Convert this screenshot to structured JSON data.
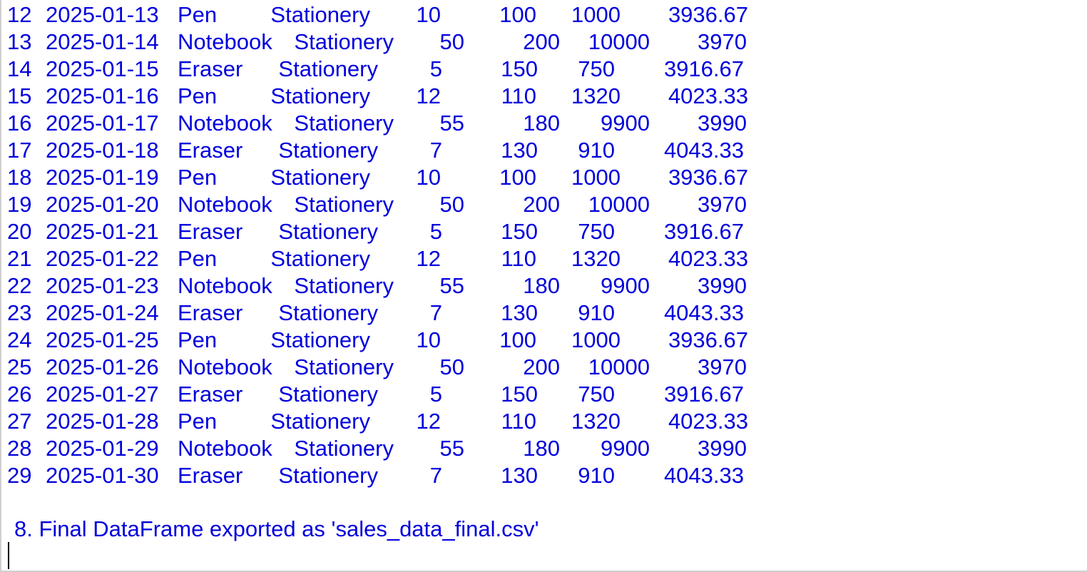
{
  "table": {
    "rows": [
      {
        "idx": "12",
        "date": "2025-01-13",
        "product": "Pen",
        "category": "Stationery",
        "qty": "10",
        "price": "100",
        "total": "1000",
        "avg": "3936.67"
      },
      {
        "idx": "13",
        "date": "2025-01-14",
        "product": "Notebook",
        "category": "Stationery",
        "qty": "50",
        "price": "200",
        "total": "10000",
        "avg": "3970"
      },
      {
        "idx": "14",
        "date": "2025-01-15",
        "product": "Eraser",
        "category": "Stationery",
        "qty": "5",
        "price": "150",
        "total": "750",
        "avg": "3916.67"
      },
      {
        "idx": "15",
        "date": "2025-01-16",
        "product": "Pen",
        "category": "Stationery",
        "qty": "12",
        "price": "110",
        "total": "1320",
        "avg": "4023.33"
      },
      {
        "idx": "16",
        "date": "2025-01-17",
        "product": "Notebook",
        "category": "Stationery",
        "qty": "55",
        "price": "180",
        "total": "9900",
        "avg": "3990"
      },
      {
        "idx": "17",
        "date": "2025-01-18",
        "product": "Eraser",
        "category": "Stationery",
        "qty": "7",
        "price": "130",
        "total": "910",
        "avg": "4043.33"
      },
      {
        "idx": "18",
        "date": "2025-01-19",
        "product": "Pen",
        "category": "Stationery",
        "qty": "10",
        "price": "100",
        "total": "1000",
        "avg": "3936.67"
      },
      {
        "idx": "19",
        "date": "2025-01-20",
        "product": "Notebook",
        "category": "Stationery",
        "qty": "50",
        "price": "200",
        "total": "10000",
        "avg": "3970"
      },
      {
        "idx": "20",
        "date": "2025-01-21",
        "product": "Eraser",
        "category": "Stationery",
        "qty": "5",
        "price": "150",
        "total": "750",
        "avg": "3916.67"
      },
      {
        "idx": "21",
        "date": "2025-01-22",
        "product": "Pen",
        "category": "Stationery",
        "qty": "12",
        "price": "110",
        "total": "1320",
        "avg": "4023.33"
      },
      {
        "idx": "22",
        "date": "2025-01-23",
        "product": "Notebook",
        "category": "Stationery",
        "qty": "55",
        "price": "180",
        "total": "9900",
        "avg": "3990"
      },
      {
        "idx": "23",
        "date": "2025-01-24",
        "product": "Eraser",
        "category": "Stationery",
        "qty": "7",
        "price": "130",
        "total": "910",
        "avg": "4043.33"
      },
      {
        "idx": "24",
        "date": "2025-01-25",
        "product": "Pen",
        "category": "Stationery",
        "qty": "10",
        "price": "100",
        "total": "1000",
        "avg": "3936.67"
      },
      {
        "idx": "25",
        "date": "2025-01-26",
        "product": "Notebook",
        "category": "Stationery",
        "qty": "50",
        "price": "200",
        "total": "10000",
        "avg": "3970"
      },
      {
        "idx": "26",
        "date": "2025-01-27",
        "product": "Eraser",
        "category": "Stationery",
        "qty": "5",
        "price": "150",
        "total": "750",
        "avg": "3916.67"
      },
      {
        "idx": "27",
        "date": "2025-01-28",
        "product": "Pen",
        "category": "Stationery",
        "qty": "12",
        "price": "110",
        "total": "1320",
        "avg": "4023.33"
      },
      {
        "idx": "28",
        "date": "2025-01-29",
        "product": "Notebook",
        "category": "Stationery",
        "qty": "55",
        "price": "180",
        "total": "9900",
        "avg": "3990"
      },
      {
        "idx": "29",
        "date": "2025-01-30",
        "product": "Eraser",
        "category": "Stationery",
        "qty": "7",
        "price": "130",
        "total": "910",
        "avg": "4043.33"
      }
    ]
  },
  "message": " 8. Final DataFrame exported as 'sales_data_final.csv'",
  "colors": {
    "text": "#0000dd",
    "background": "#ffffff",
    "caret": "#000000"
  }
}
